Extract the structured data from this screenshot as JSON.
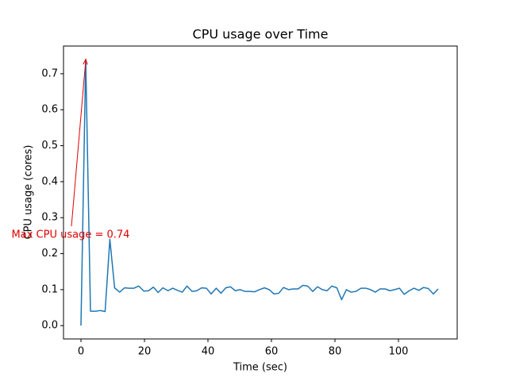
{
  "chart_data": {
    "type": "line",
    "title": "CPU usage over Time",
    "xlabel": "Time (sec)",
    "ylabel": "CPU usage (cores)",
    "annotation": "Max CPU usage = 0.74",
    "annotation_color": "#e00000",
    "x": [
      0,
      1.5,
      3.0,
      4.6,
      6.1,
      7.6,
      9.1,
      10.6,
      12.2,
      13.7,
      15.2,
      16.7,
      18.2,
      19.8,
      21.3,
      22.8,
      24.3,
      25.8,
      27.4,
      28.9,
      30.4,
      31.9,
      33.4,
      35.0,
      36.5,
      38.0,
      39.5,
      41.0,
      42.6,
      44.1,
      45.6,
      47.1,
      48.6,
      50.2,
      51.7,
      53.2,
      54.7,
      56.2,
      57.8,
      59.3,
      60.8,
      62.3,
      63.8,
      65.4,
      66.9,
      68.4,
      69.9,
      71.4,
      73.0,
      74.5,
      76.0,
      77.5,
      79.0,
      80.6,
      82.1,
      83.6,
      85.1,
      86.6,
      88.2,
      89.7,
      91.2,
      92.7,
      94.2,
      95.8,
      97.3,
      98.8,
      100.3,
      101.8,
      103.4,
      104.9,
      106.4,
      107.9,
      109.4,
      111.0,
      112.5
    ],
    "series": [
      {
        "color": "#1f77b4",
        "values": [
          0,
          0.74,
          0.04,
          0.04,
          0.042,
          0.039,
          0.24,
          0.105,
          0.093,
          0.105,
          0.104,
          0.104,
          0.11,
          0.096,
          0.097,
          0.107,
          0.092,
          0.105,
          0.097,
          0.104,
          0.098,
          0.093,
          0.11,
          0.095,
          0.097,
          0.105,
          0.104,
          0.088,
          0.104,
          0.09,
          0.105,
          0.108,
          0.097,
          0.1,
          0.095,
          0.095,
          0.094,
          0.1,
          0.105,
          0.1,
          0.088,
          0.09,
          0.106,
          0.1,
          0.102,
          0.102,
          0.112,
          0.11,
          0.095,
          0.108,
          0.1,
          0.097,
          0.11,
          0.105,
          0.072,
          0.1,
          0.093,
          0.095,
          0.104,
          0.104,
          0.1,
          0.093,
          0.102,
          0.102,
          0.097,
          0.1,
          0.104,
          0.087,
          0.097,
          0.104,
          0.098,
          0.106,
          0.103,
          0.088,
          0.102
        ]
      }
    ],
    "xlim": [
      -5.5,
      118.5
    ],
    "ylim": [
      -0.037,
      0.777
    ],
    "xticks": [
      0,
      20,
      40,
      60,
      80,
      100
    ],
    "yticks": [
      {
        "value": 0,
        "label": "0.0"
      },
      0.1,
      0.2,
      0.3,
      0.4,
      0.5,
      0.6,
      0.7
    ],
    "grid": false
  }
}
